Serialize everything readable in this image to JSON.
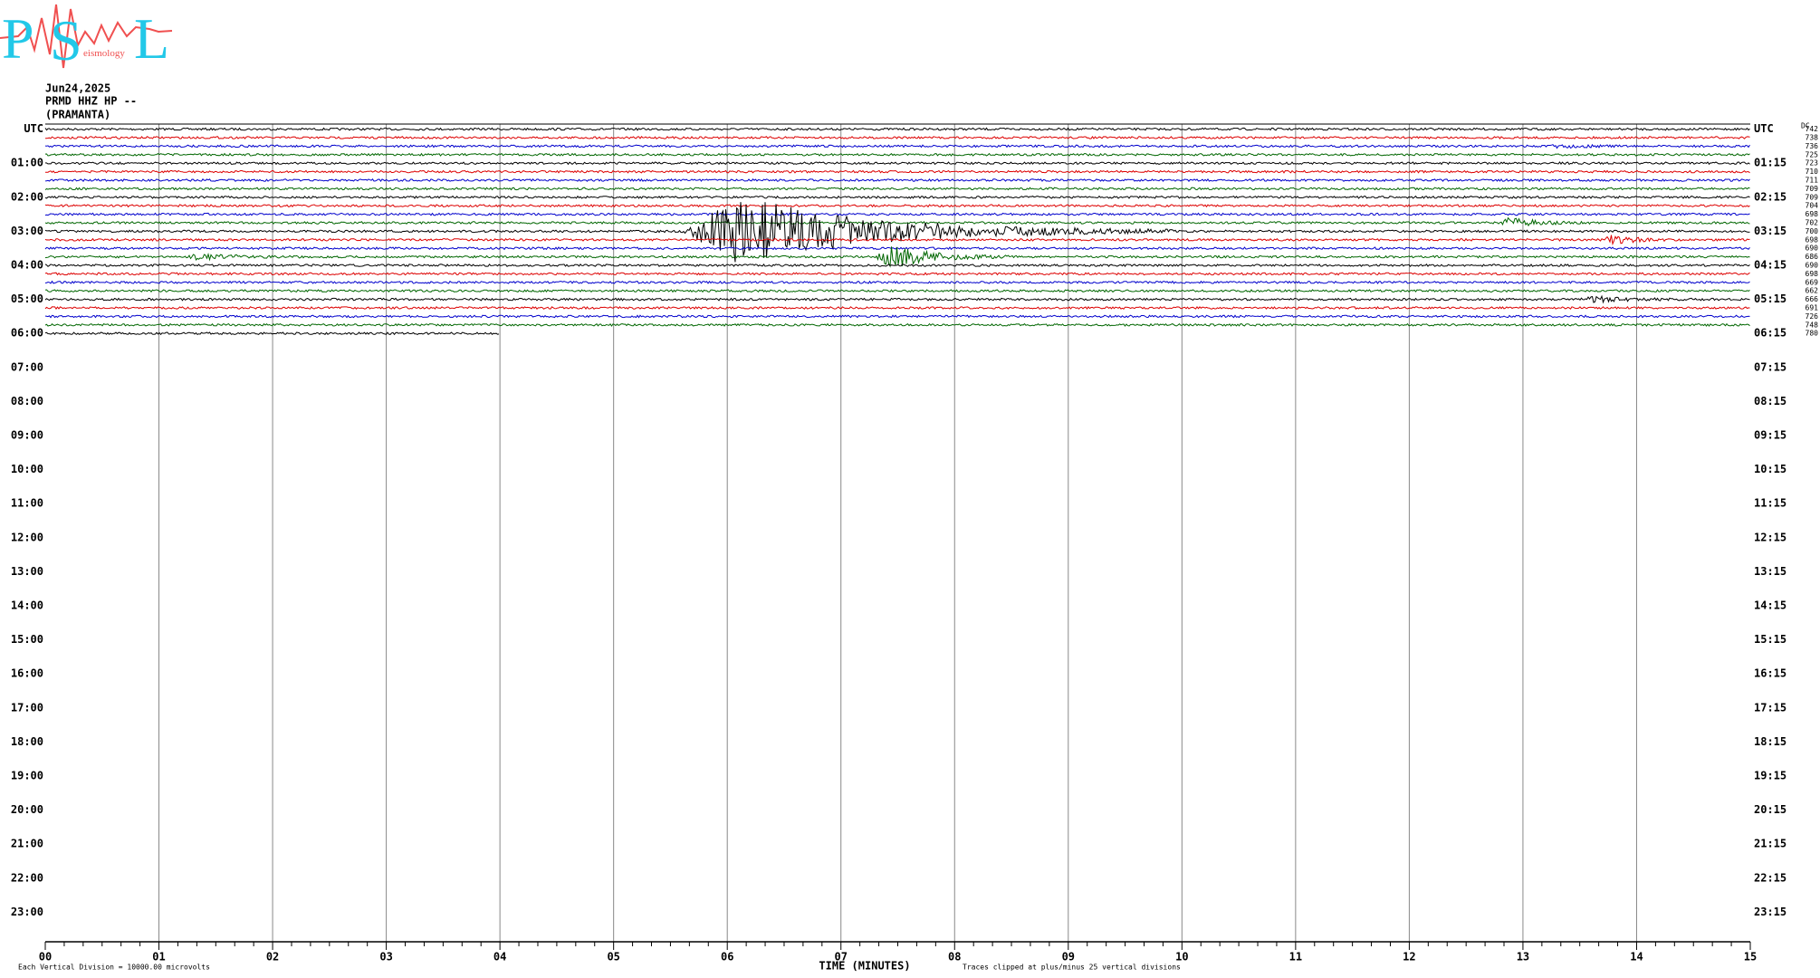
{
  "header": {
    "logo": {
      "letters": [
        "P",
        "S",
        "L"
      ],
      "word": "eismology"
    },
    "date": "Jun24,2025",
    "station": "PRMD HHZ HP --",
    "location": "(PRAMANTA)"
  },
  "left_labels": [
    "UTC",
    "01:00",
    "02:00",
    "03:00",
    "04:00",
    "05:00",
    "06:00",
    "07:00",
    "08:00",
    "09:00",
    "10:00",
    "11:00",
    "12:00",
    "13:00",
    "14:00",
    "15:00",
    "16:00",
    "17:00",
    "18:00",
    "19:00",
    "20:00",
    "21:00",
    "22:00",
    "23:00"
  ],
  "right_labels": [
    "UTC",
    "01:15",
    "02:15",
    "03:15",
    "04:15",
    "05:15",
    "06:15",
    "07:15",
    "08:15",
    "09:15",
    "10:15",
    "11:15",
    "12:15",
    "13:15",
    "14:15",
    "15:15",
    "16:15",
    "17:15",
    "18:15",
    "19:15",
    "20:15",
    "21:15",
    "22:15",
    "23:15"
  ],
  "dc_title": "DC",
  "dc_values": [
    "742",
    "738",
    "736",
    "725",
    "723",
    "710",
    "711",
    "709",
    "709",
    "704",
    "698",
    "702",
    "700",
    "698",
    "690",
    "686",
    "690",
    "698",
    "669",
    "662",
    "666",
    "691",
    "726",
    "748",
    "780"
  ],
  "x_labels": [
    "00",
    "01",
    "02",
    "03",
    "04",
    "05",
    "06",
    "07",
    "08",
    "09",
    "10",
    "11",
    "12",
    "13",
    "14",
    "15"
  ],
  "x_title": "TIME (MINUTES)",
  "footer_left": "Each Vertical Division = 10000.00 microvolts",
  "footer_right": "Traces clipped at plus/minus 25 vertical divisions"
}
